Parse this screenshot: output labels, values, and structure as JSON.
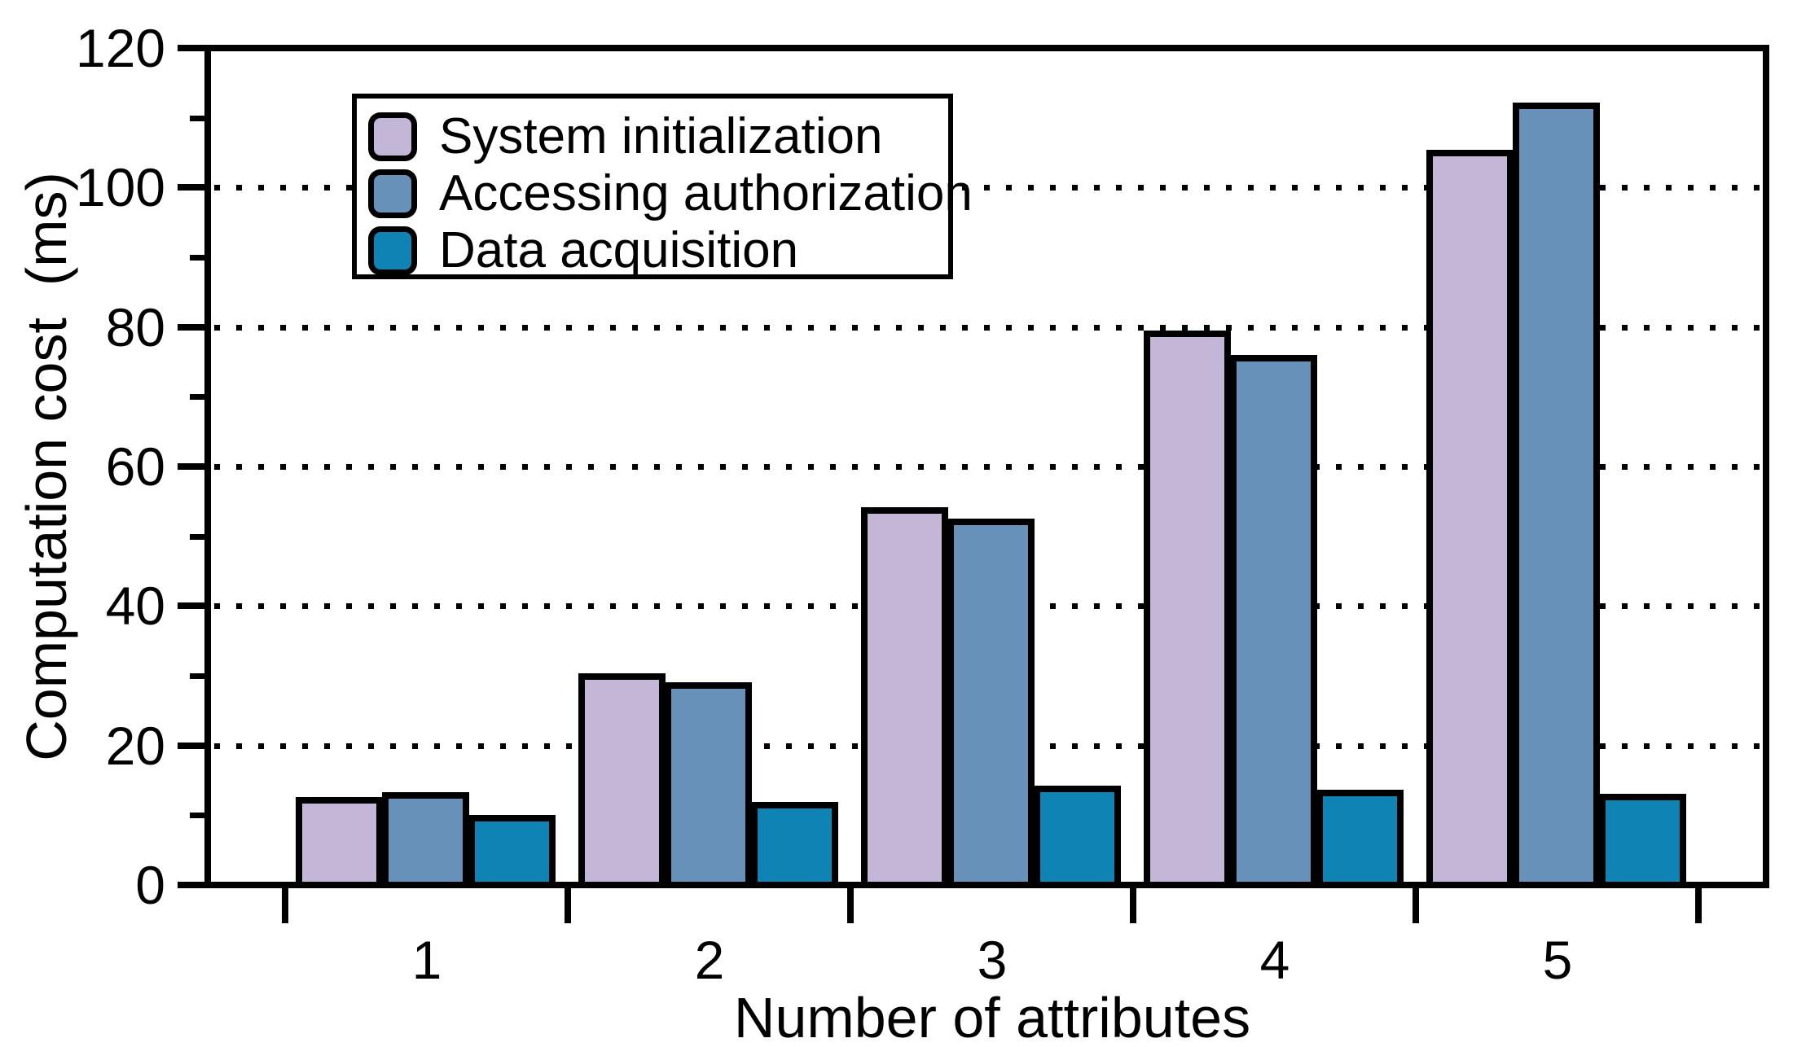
{
  "chart_data": {
    "type": "bar",
    "title": "",
    "xlabel": "Number of attributes",
    "ylabel": "Computation cost  (ms)",
    "categories": [
      "1",
      "2",
      "3",
      "4",
      "5"
    ],
    "series": [
      {
        "name": "System initialization",
        "color": "#c4b6d6",
        "values": [
          12.6,
          30.4,
          54.2,
          79.5,
          105.4
        ]
      },
      {
        "name": "Accessing authorization",
        "color": "#6791b9",
        "values": [
          13.3,
          29.1,
          52.5,
          76.0,
          112.2
        ]
      },
      {
        "name": "Data acquisition",
        "color": "#0e83b4",
        "values": [
          10.0,
          11.9,
          14.2,
          13.7,
          13.1
        ]
      }
    ],
    "ylim": [
      0,
      120
    ],
    "yticks": [
      0,
      20,
      40,
      60,
      80,
      100,
      120
    ],
    "minor_yticks": [
      10,
      30,
      50,
      70,
      90,
      110
    ],
    "gridlines": [
      20,
      40,
      60,
      80,
      100
    ],
    "grid_style": "dotted",
    "legend_position": "upper-left",
    "bar_edge_color": "#000000",
    "axis_color": "#000000",
    "background": "#ffffff"
  }
}
